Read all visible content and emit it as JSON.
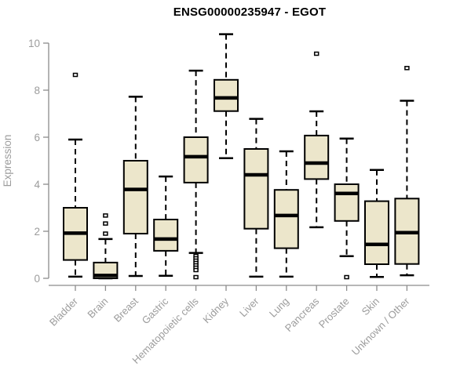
{
  "chart_data": {
    "type": "boxplot",
    "title": "ENSG00000235947 - EGOT",
    "ylabel": "Expression",
    "xlabel": "",
    "ylim": [
      0,
      10.5
    ],
    "yticks": [
      0,
      2,
      4,
      6,
      8,
      10
    ],
    "grid": false,
    "legend": null,
    "categories": [
      "Bladder",
      "Brain",
      "Breast",
      "Gastric",
      "Hematopoietic cells",
      "Kidney",
      "Liver",
      "Lung",
      "Pancreas",
      "Prostate",
      "Skin",
      "Unknown / Other"
    ],
    "boxes": [
      {
        "category": "Bladder",
        "whisker_low": 0.07,
        "q1": 0.78,
        "median": 1.92,
        "q3": 3.0,
        "whisker_high": 5.9,
        "outliers": [
          8.65
        ]
      },
      {
        "category": "Brain",
        "whisker_low": 0.0,
        "q1": 0.0,
        "median": 0.12,
        "q3": 0.67,
        "whisker_high": 1.67,
        "outliers": [
          1.9,
          2.33,
          2.67
        ]
      },
      {
        "category": "Breast",
        "whisker_low": 0.1,
        "q1": 1.9,
        "median": 3.78,
        "q3": 5.0,
        "whisker_high": 7.72,
        "outliers": []
      },
      {
        "category": "Gastric",
        "whisker_low": 0.11,
        "q1": 1.17,
        "median": 1.67,
        "q3": 2.5,
        "whisker_high": 4.33,
        "outliers": []
      },
      {
        "category": "Hematopoietic cells",
        "whisker_low": 1.08,
        "q1": 4.07,
        "median": 5.17,
        "q3": 6.0,
        "whisker_high": 8.83,
        "outliers": [
          0.95,
          0.85,
          0.75,
          0.65,
          0.55,
          0.45,
          0.35,
          0.05
        ]
      },
      {
        "category": "Kidney",
        "whisker_low": 5.11,
        "q1": 7.11,
        "median": 7.67,
        "q3": 8.44,
        "whisker_high": 10.38,
        "outliers": []
      },
      {
        "category": "Liver",
        "whisker_low": 0.07,
        "q1": 2.11,
        "median": 4.4,
        "q3": 5.5,
        "whisker_high": 6.78,
        "outliers": []
      },
      {
        "category": "Lung",
        "whisker_low": 0.07,
        "q1": 1.28,
        "median": 2.67,
        "q3": 3.76,
        "whisker_high": 5.4,
        "outliers": []
      },
      {
        "category": "Pancreas",
        "whisker_low": 2.17,
        "q1": 4.22,
        "median": 4.9,
        "q3": 6.07,
        "whisker_high": 7.1,
        "outliers": [
          9.55
        ]
      },
      {
        "category": "Prostate",
        "whisker_low": 0.94,
        "q1": 2.44,
        "median": 3.61,
        "q3": 4.0,
        "whisker_high": 5.94,
        "outliers": [
          0.05
        ]
      },
      {
        "category": "Skin",
        "whisker_low": 0.06,
        "q1": 0.6,
        "median": 1.44,
        "q3": 3.28,
        "whisker_high": 4.61,
        "outliers": []
      },
      {
        "category": "Unknown / Other",
        "whisker_low": 0.13,
        "q1": 0.61,
        "median": 1.94,
        "q3": 3.39,
        "whisker_high": 7.55,
        "outliers": [
          8.94
        ]
      }
    ],
    "colors": {
      "box_fill": "#ece6cb",
      "box_border": "#000000",
      "median": "#000000",
      "whisker": "#000000",
      "outlier_fill": "#ffffff",
      "axis": "#8c8c8c",
      "tick_label": "#9c9c9c",
      "axis_label": "#9c9c9c",
      "title": "#000000",
      "background": "#ffffff"
    }
  }
}
